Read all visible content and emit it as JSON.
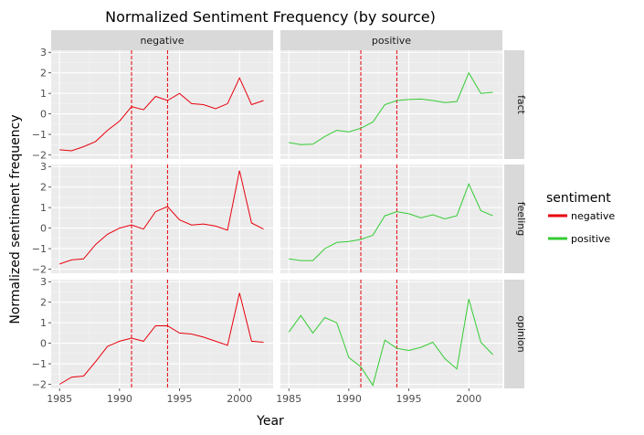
{
  "chart_data": {
    "type": "line",
    "title": "Normalized Sentiment Frequency (by source)",
    "xlabel": "Year",
    "ylabel": "Normalized sentiment frequency",
    "xlim": [
      1984.3,
      2002.8
    ],
    "ylim": [
      -2.2,
      3.1
    ],
    "x_ticks": [
      1985,
      1990,
      1995,
      2000
    ],
    "y_ticks": [
      -2,
      -1,
      0,
      1,
      2,
      3
    ],
    "y_tick_labels": [
      "−2",
      "−1",
      "0",
      "1",
      "2",
      "3"
    ],
    "vlines": [
      1991,
      1994
    ],
    "vline_color": "#e8000b",
    "panel_background": "#ebebeb",
    "grid": true,
    "facet_columns": [
      "negative",
      "positive"
    ],
    "facet_rows": [
      "fact",
      "feeling",
      "opinion"
    ],
    "legend": {
      "title": "sentiment",
      "position": "right",
      "entries": [
        {
          "label": "negative",
          "color": "#e8000b"
        },
        {
          "label": "positive",
          "color": "#33cc33"
        }
      ]
    },
    "x": [
      1985,
      1986,
      1987,
      1988,
      1989,
      1990,
      1991,
      1992,
      1993,
      1994,
      1995,
      1996,
      1997,
      1998,
      1999,
      2000,
      2001,
      2002
    ],
    "panels": [
      {
        "row": "fact",
        "column": "negative",
        "color": "#e8000b",
        "values": [
          -1.75,
          -1.8,
          -1.6,
          -1.35,
          -0.8,
          -0.35,
          0.35,
          0.2,
          0.85,
          0.65,
          1.0,
          0.5,
          0.45,
          0.25,
          0.5,
          1.75,
          0.45,
          0.65
        ]
      },
      {
        "row": "fact",
        "column": "positive",
        "color": "#33cc33",
        "values": [
          -1.4,
          -1.5,
          -1.48,
          -1.1,
          -0.8,
          -0.88,
          -0.7,
          -0.4,
          0.45,
          0.65,
          0.7,
          0.72,
          0.65,
          0.55,
          0.6,
          2.0,
          1.0,
          1.05
        ]
      },
      {
        "row": "feeling",
        "column": "negative",
        "color": "#e8000b",
        "values": [
          -1.75,
          -1.55,
          -1.5,
          -0.8,
          -0.3,
          0.0,
          0.15,
          -0.05,
          0.8,
          1.05,
          0.4,
          0.15,
          0.2,
          0.1,
          -0.1,
          2.8,
          0.25,
          -0.05
        ]
      },
      {
        "row": "feeling",
        "column": "positive",
        "color": "#33cc33",
        "values": [
          -1.5,
          -1.58,
          -1.58,
          -1.0,
          -0.7,
          -0.65,
          -0.55,
          -0.35,
          0.6,
          0.8,
          0.7,
          0.5,
          0.65,
          0.45,
          0.6,
          2.15,
          0.85,
          0.6
        ]
      },
      {
        "row": "opinion",
        "column": "negative",
        "color": "#e8000b",
        "values": [
          -2.0,
          -1.65,
          -1.6,
          -0.9,
          -0.15,
          0.1,
          0.25,
          0.1,
          0.85,
          0.85,
          0.5,
          0.45,
          0.3,
          0.1,
          -0.1,
          2.45,
          0.1,
          0.05
        ]
      },
      {
        "row": "opinion",
        "column": "positive",
        "color": "#33cc33",
        "values": [
          0.55,
          1.35,
          0.5,
          1.25,
          1.0,
          -0.7,
          -1.15,
          -2.05,
          0.15,
          -0.25,
          -0.35,
          -0.2,
          0.05,
          -0.75,
          -1.25,
          2.15,
          0.05,
          -0.55
        ]
      }
    ]
  }
}
